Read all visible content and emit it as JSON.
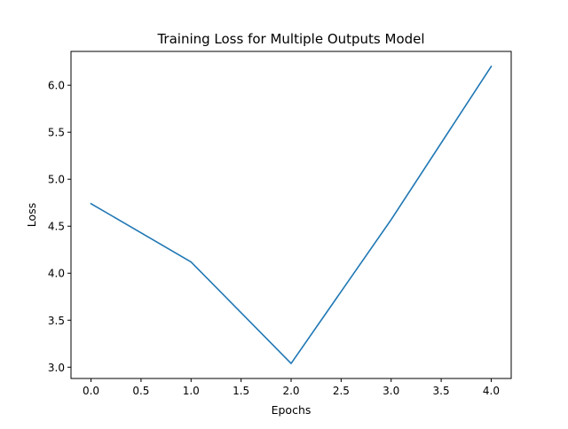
{
  "chart_data": {
    "type": "line",
    "title": "Training Loss for Multiple Outputs Model",
    "xlabel": "Epochs",
    "ylabel": "Loss",
    "x": [
      0,
      1,
      2,
      3,
      4
    ],
    "series": [
      {
        "values": [
          4.74,
          4.12,
          3.04,
          4.57,
          6.2
        ],
        "color": "#1f77b4"
      }
    ],
    "xlim": [
      -0.2,
      4.2
    ],
    "ylim": [
      2.88,
      6.36
    ],
    "xticks": [
      0.0,
      0.5,
      1.0,
      1.5,
      2.0,
      2.5,
      3.0,
      3.5,
      4.0
    ],
    "xtick_labels": [
      "0.0",
      "0.5",
      "1.0",
      "1.5",
      "2.0",
      "2.5",
      "3.0",
      "3.5",
      "4.0"
    ],
    "yticks": [
      3.0,
      3.5,
      4.0,
      4.5,
      5.0,
      5.5,
      6.0
    ],
    "ytick_labels": [
      "3.0",
      "3.5",
      "4.0",
      "4.5",
      "5.0",
      "5.5",
      "6.0"
    ],
    "grid": false,
    "legend": "none"
  }
}
